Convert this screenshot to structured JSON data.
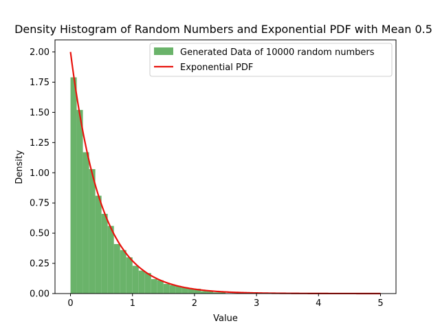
{
  "chart_data": {
    "type": "bar",
    "title": "Density Histogram of Random Numbers and Exponential PDF with Mean 0.5",
    "xlabel": "Value",
    "ylabel": "Density",
    "xlim": [
      -0.25,
      5.25
    ],
    "ylim": [
      0,
      2.1
    ],
    "xticks": [
      0,
      1,
      2,
      3,
      4,
      5
    ],
    "yticks": [
      0.0,
      0.25,
      0.5,
      0.75,
      1.0,
      1.25,
      1.5,
      1.75,
      2.0
    ],
    "grid": false,
    "legend_position": "top-right",
    "legend": [
      "Generated Data of 10000 random numbers",
      "Exponential PDF"
    ],
    "series": [
      {
        "name": "Generated Data of 10000 random numbers",
        "kind": "histogram",
        "color": "#6ab36a",
        "bin_edges": [
          0.0,
          0.1,
          0.2,
          0.3,
          0.4,
          0.5,
          0.6,
          0.7,
          0.8,
          0.9,
          1.0,
          1.1,
          1.2,
          1.3,
          1.4,
          1.5,
          1.6,
          1.7,
          1.8,
          1.9,
          2.0,
          2.1,
          2.2,
          2.3,
          2.4,
          2.5
        ],
        "values": [
          1.79,
          1.52,
          1.17,
          1.03,
          0.81,
          0.66,
          0.56,
          0.41,
          0.36,
          0.3,
          0.23,
          0.19,
          0.17,
          0.12,
          0.11,
          0.08,
          0.07,
          0.06,
          0.05,
          0.04,
          0.04,
          0.02,
          0.02,
          0.01,
          0.01
        ]
      },
      {
        "name": "Exponential PDF",
        "kind": "line",
        "color": "#e8120c",
        "mean": 0.5,
        "x_range": [
          0,
          5
        ]
      }
    ]
  }
}
